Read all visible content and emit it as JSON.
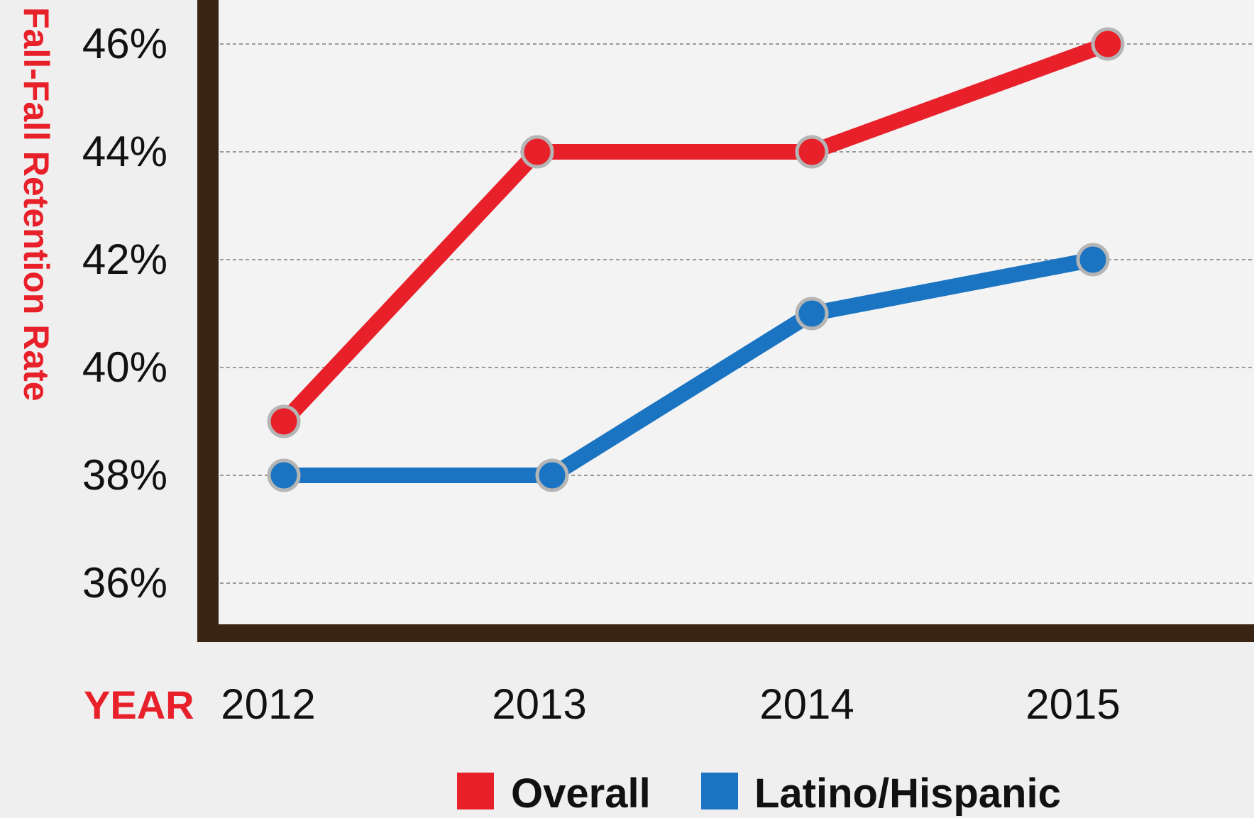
{
  "chart_data": {
    "type": "line",
    "categories": [
      "2012",
      "2013",
      "2014",
      "2015"
    ],
    "series": [
      {
        "name": "Overall",
        "values": [
          39,
          44,
          44,
          46
        ],
        "color": "#e8202a"
      },
      {
        "name": "Latino/Hispanic",
        "values": [
          38,
          38,
          41,
          42
        ],
        "color": "#1a74c2"
      }
    ],
    "yticks": [
      "36%",
      "38%",
      "40%",
      "42%",
      "44%",
      "46%"
    ],
    "ytick_values": [
      36,
      38,
      40,
      42,
      44,
      46
    ],
    "ylim": [
      34.9,
      46.8
    ],
    "ylabel": "Fall-Fall Retention Rate",
    "xlabel": "YEAR",
    "grid": true,
    "legend": "bottom"
  },
  "colors": {
    "accent_red": "#e8202a",
    "axis_frame": "#3a2413",
    "background": "#efefef"
  }
}
